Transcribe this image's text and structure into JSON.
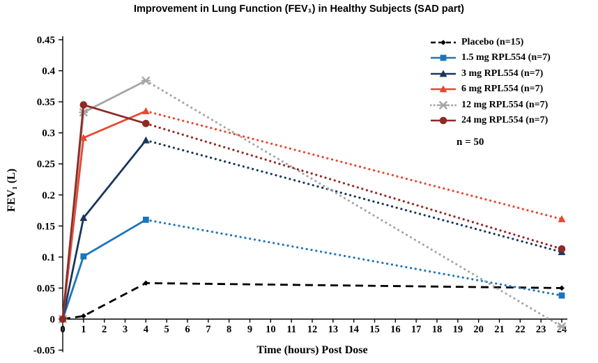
{
  "chart_data": {
    "type": "line",
    "title": "Improvement in Lung Function (FEV₁) in Healthy Subjects (SAD part)",
    "xlabel": "Time (hours) Post Dose",
    "ylabel": "FEV₁ (L)",
    "xlim": [
      0,
      24
    ],
    "ylim": [
      -0.05,
      0.45
    ],
    "x_ticks": [
      "0",
      "1",
      "2",
      "3",
      "4",
      "5",
      "6",
      "7",
      "8",
      "9",
      "10",
      "11",
      "12",
      "13",
      "14",
      "15",
      "16",
      "17",
      "18",
      "19",
      "20",
      "21",
      "22",
      "23",
      "24"
    ],
    "y_ticks": [
      "0.45",
      "0.4",
      "0.35",
      "0.3",
      "0.25",
      "0.2",
      "0.15",
      "0.1",
      "0.05",
      "0",
      "-0.05"
    ],
    "annotation": "n = 50",
    "legend_position": "top-right",
    "grid": false,
    "series": [
      {
        "name": "Placebo (n=15)",
        "color": "#000000",
        "marker": "diamond",
        "line": "dashed",
        "x": [
          0,
          1,
          4,
          24
        ],
        "y": [
          0,
          0.005,
          0.058,
          0.05
        ]
      },
      {
        "name": "1.5 mg RPL554 (n=7)",
        "color": "#1b75bb",
        "marker": "square",
        "line": "mixed",
        "x": [
          0,
          1,
          4,
          24
        ],
        "y": [
          0,
          0.101,
          0.16,
          0.038
        ]
      },
      {
        "name": "3 mg RPL554 (n=7)",
        "color": "#17365d",
        "marker": "triangle",
        "line": "mixed",
        "x": [
          0,
          1,
          4,
          24
        ],
        "y": [
          0,
          0.163,
          0.288,
          0.108
        ]
      },
      {
        "name": "6 mg RPL554 (n=7)",
        "color": "#e8472f",
        "marker": "triangle",
        "line": "mixed",
        "x": [
          0,
          1,
          4,
          24
        ],
        "y": [
          0,
          0.292,
          0.335,
          0.161
        ]
      },
      {
        "name": "12 mg RPL554 (n=7)",
        "color": "#a6a6a6",
        "marker": "x",
        "line": "mixed",
        "legend_line": "dotted",
        "x": [
          0,
          1,
          4,
          24
        ],
        "y": [
          0,
          0.333,
          0.384,
          -0.012
        ]
      },
      {
        "name": "24 mg RPL554 (n=7)",
        "color": "#8e2a25",
        "marker": "circle",
        "line": "mixed",
        "x": [
          0,
          1,
          4,
          24
        ],
        "y": [
          0,
          0.345,
          0.315,
          0.113
        ]
      }
    ]
  }
}
